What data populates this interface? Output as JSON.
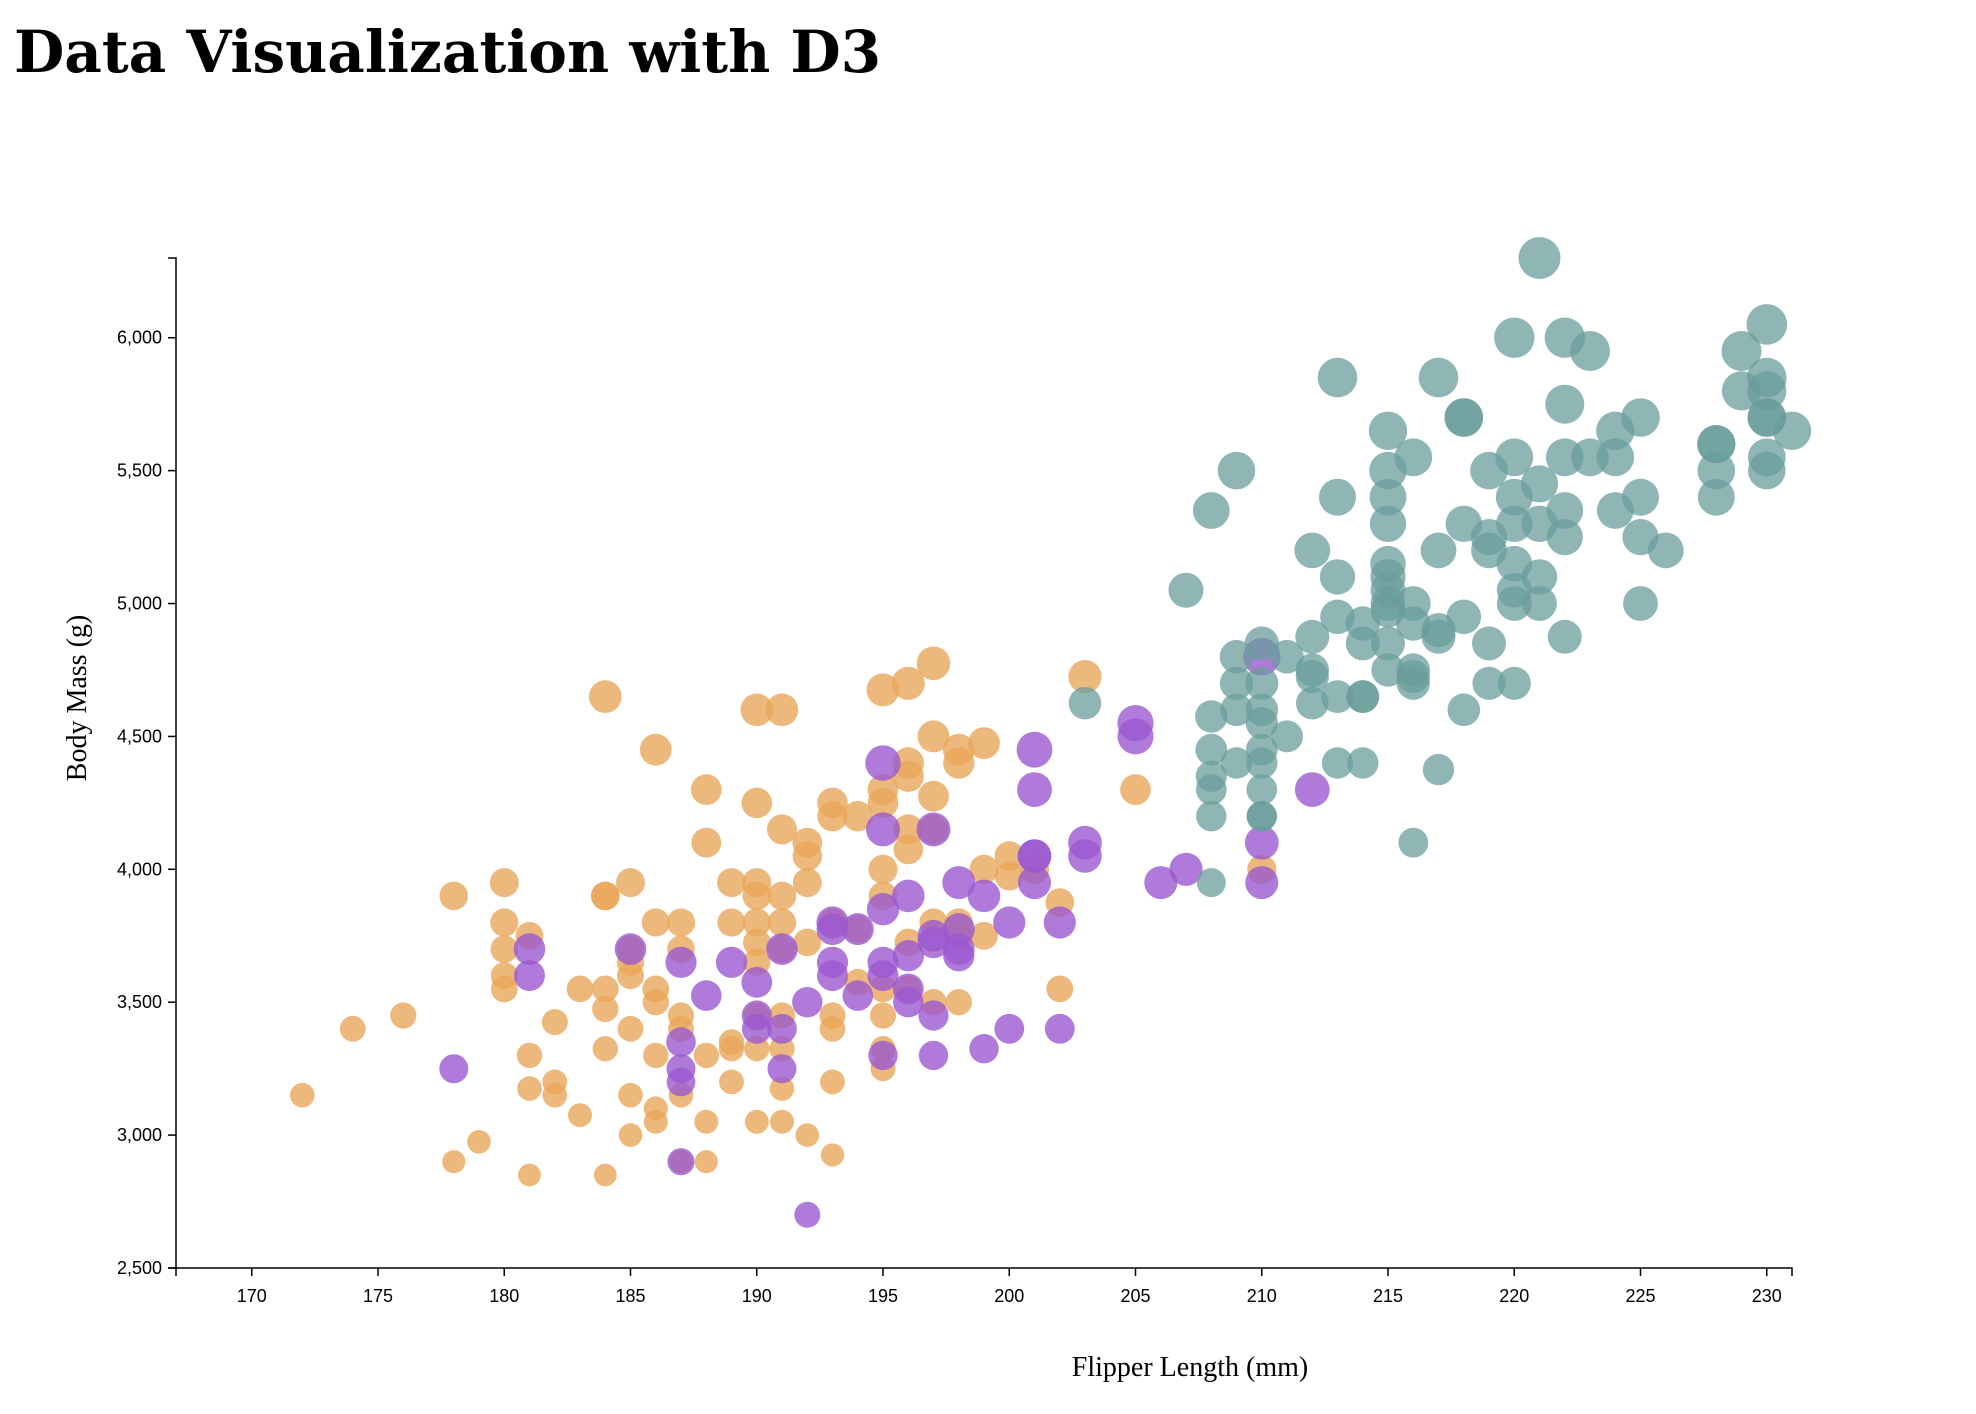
{
  "page": {
    "title": "Data Visualization with D3"
  },
  "chart_data": {
    "type": "scatter",
    "title": "",
    "xlabel": "Flipper Length (mm)",
    "ylabel": "Body Mass (g)",
    "xlim": [
      167,
      231
    ],
    "ylim": [
      2500,
      6300
    ],
    "x_ticks": [
      "170",
      "175",
      "180",
      "185",
      "190",
      "195",
      "200",
      "205",
      "210",
      "215",
      "220",
      "225",
      "230"
    ],
    "y_ticks": [
      "2,500",
      "3,000",
      "3,500",
      "4,000",
      "4,500",
      "5,000",
      "5,500",
      "6,000"
    ],
    "x_tick_values": [
      170,
      175,
      180,
      185,
      190,
      195,
      200,
      205,
      210,
      215,
      220,
      225,
      230
    ],
    "y_tick_values": [
      2500,
      3000,
      3500,
      4000,
      4500,
      5000,
      5500,
      6000
    ],
    "grid": false,
    "series": [
      {
        "color": "#e8a65a",
        "points": [
          [
            172,
            3150
          ],
          [
            174,
            3400
          ],
          [
            176,
            3450
          ],
          [
            178,
            3900
          ],
          [
            178,
            2900
          ],
          [
            179,
            2975
          ],
          [
            180,
            3950
          ],
          [
            180,
            3800
          ],
          [
            180,
            3700
          ],
          [
            180,
            3600
          ],
          [
            180,
            3550
          ],
          [
            181,
            3750
          ],
          [
            181,
            3300
          ],
          [
            181,
            3175
          ],
          [
            181,
            2850
          ],
          [
            182,
            3425
          ],
          [
            182,
            3200
          ],
          [
            182,
            3150
          ],
          [
            183,
            3550
          ],
          [
            183,
            3075
          ],
          [
            184,
            4650
          ],
          [
            184,
            3900
          ],
          [
            184,
            3900
          ],
          [
            184,
            3550
          ],
          [
            184,
            3475
          ],
          [
            184,
            3325
          ],
          [
            184,
            2850
          ],
          [
            185,
            3950
          ],
          [
            185,
            3700
          ],
          [
            185,
            3650
          ],
          [
            185,
            3600
          ],
          [
            185,
            3400
          ],
          [
            185,
            3150
          ],
          [
            185,
            3000
          ],
          [
            186,
            4450
          ],
          [
            186,
            3800
          ],
          [
            186,
            3550
          ],
          [
            186,
            3500
          ],
          [
            186,
            3300
          ],
          [
            186,
            3100
          ],
          [
            186,
            3050
          ],
          [
            187,
            3800
          ],
          [
            187,
            3700
          ],
          [
            187,
            3450
          ],
          [
            187,
            3400
          ],
          [
            187,
            3150
          ],
          [
            187,
            2900
          ],
          [
            188,
            4300
          ],
          [
            188,
            4100
          ],
          [
            188,
            3300
          ],
          [
            188,
            3050
          ],
          [
            188,
            2900
          ],
          [
            189,
            3950
          ],
          [
            189,
            3800
          ],
          [
            189,
            3350
          ],
          [
            189,
            3325
          ],
          [
            189,
            3200
          ],
          [
            190,
            4600
          ],
          [
            190,
            4250
          ],
          [
            190,
            3950
          ],
          [
            190,
            3900
          ],
          [
            190,
            3800
          ],
          [
            190,
            3725
          ],
          [
            190,
            3650
          ],
          [
            190,
            3450
          ],
          [
            190,
            3325
          ],
          [
            190,
            3050
          ],
          [
            191,
            4600
          ],
          [
            191,
            4150
          ],
          [
            191,
            3900
          ],
          [
            191,
            3800
          ],
          [
            191,
            3700
          ],
          [
            191,
            3450
          ],
          [
            191,
            3325
          ],
          [
            191,
            3175
          ],
          [
            191,
            3050
          ],
          [
            192,
            4100
          ],
          [
            192,
            4050
          ],
          [
            192,
            3950
          ],
          [
            192,
            3725
          ],
          [
            192,
            3000
          ],
          [
            193,
            4250
          ],
          [
            193,
            4200
          ],
          [
            193,
            3800
          ],
          [
            193,
            3450
          ],
          [
            193,
            3400
          ],
          [
            193,
            3200
          ],
          [
            193,
            2925
          ],
          [
            194,
            4200
          ],
          [
            194,
            3775
          ],
          [
            194,
            3575
          ],
          [
            195,
            4675
          ],
          [
            195,
            4300
          ],
          [
            195,
            4250
          ],
          [
            195,
            4000
          ],
          [
            195,
            3900
          ],
          [
            195,
            3550
          ],
          [
            195,
            3450
          ],
          [
            195,
            3325
          ],
          [
            195,
            3250
          ],
          [
            196,
            4700
          ],
          [
            196,
            4400
          ],
          [
            196,
            4350
          ],
          [
            196,
            4150
          ],
          [
            196,
            4075
          ],
          [
            196,
            3725
          ],
          [
            196,
            3550
          ],
          [
            197,
            4775
          ],
          [
            197,
            4500
          ],
          [
            197,
            4275
          ],
          [
            197,
            4150
          ],
          [
            197,
            3800
          ],
          [
            197,
            3500
          ],
          [
            198,
            4450
          ],
          [
            198,
            4400
          ],
          [
            198,
            3800
          ],
          [
            198,
            3750
          ],
          [
            198,
            3500
          ],
          [
            199,
            4475
          ],
          [
            199,
            4000
          ],
          [
            199,
            3750
          ],
          [
            200,
            4050
          ],
          [
            200,
            3975
          ],
          [
            201,
            4000
          ],
          [
            202,
            3875
          ],
          [
            202,
            3550
          ],
          [
            203,
            4725
          ],
          [
            205,
            4300
          ],
          [
            210,
            4000
          ]
        ]
      },
      {
        "color": "#9b59d0",
        "points": [
          [
            178,
            3250
          ],
          [
            181,
            3700
          ],
          [
            181,
            3600
          ],
          [
            185,
            3700
          ],
          [
            187,
            3650
          ],
          [
            187,
            3350
          ],
          [
            187,
            3250
          ],
          [
            187,
            3200
          ],
          [
            187,
            2900
          ],
          [
            188,
            3525
          ],
          [
            189,
            3650
          ],
          [
            190,
            3575
          ],
          [
            190,
            3450
          ],
          [
            190,
            3400
          ],
          [
            191,
            3700
          ],
          [
            191,
            3400
          ],
          [
            191,
            3250
          ],
          [
            192,
            3500
          ],
          [
            192,
            2700
          ],
          [
            193,
            3800
          ],
          [
            193,
            3775
          ],
          [
            193,
            3650
          ],
          [
            193,
            3600
          ],
          [
            194,
            3775
          ],
          [
            194,
            3525
          ],
          [
            195,
            4400
          ],
          [
            195,
            4150
          ],
          [
            195,
            3850
          ],
          [
            195,
            3650
          ],
          [
            195,
            3600
          ],
          [
            195,
            3300
          ],
          [
            196,
            3900
          ],
          [
            196,
            3675
          ],
          [
            196,
            3550
          ],
          [
            196,
            3500
          ],
          [
            197,
            4150
          ],
          [
            197,
            3750
          ],
          [
            197,
            3725
          ],
          [
            197,
            3450
          ],
          [
            197,
            3300
          ],
          [
            198,
            3950
          ],
          [
            198,
            3775
          ],
          [
            198,
            3700
          ],
          [
            198,
            3675
          ],
          [
            199,
            3900
          ],
          [
            199,
            3325
          ],
          [
            200,
            3800
          ],
          [
            200,
            3400
          ],
          [
            201,
            4450
          ],
          [
            201,
            4300
          ],
          [
            201,
            4050
          ],
          [
            201,
            4050
          ],
          [
            201,
            3950
          ],
          [
            202,
            3800
          ],
          [
            202,
            3400
          ],
          [
            203,
            4100
          ],
          [
            203,
            4050
          ],
          [
            205,
            4550
          ],
          [
            205,
            4500
          ],
          [
            206,
            3950
          ],
          [
            207,
            4000
          ],
          [
            210,
            4800
          ],
          [
            210,
            4100
          ],
          [
            210,
            3950
          ],
          [
            212,
            4300
          ]
        ]
      },
      {
        "color": "#6a9e9b",
        "points": [
          [
            203,
            4625
          ],
          [
            207,
            5050
          ],
          [
            208,
            5350
          ],
          [
            208,
            4575
          ],
          [
            208,
            4450
          ],
          [
            208,
            4350
          ],
          [
            208,
            4300
          ],
          [
            208,
            4200
          ],
          [
            208,
            3950
          ],
          [
            209,
            5500
          ],
          [
            209,
            4800
          ],
          [
            209,
            4700
          ],
          [
            209,
            4600
          ],
          [
            209,
            4400
          ],
          [
            210,
            4850
          ],
          [
            210,
            4700
          ],
          [
            210,
            4600
          ],
          [
            210,
            4550
          ],
          [
            210,
            4450
          ],
          [
            210,
            4400
          ],
          [
            210,
            4300
          ],
          [
            210,
            4200
          ],
          [
            210,
            4200
          ],
          [
            211,
            4800
          ],
          [
            211,
            4500
          ],
          [
            212,
            5200
          ],
          [
            212,
            4875
          ],
          [
            212,
            4750
          ],
          [
            212,
            4725
          ],
          [
            212,
            4625
          ],
          [
            213,
            5850
          ],
          [
            213,
            5400
          ],
          [
            213,
            5100
          ],
          [
            213,
            4950
          ],
          [
            213,
            4650
          ],
          [
            213,
            4400
          ],
          [
            214,
            4925
          ],
          [
            214,
            4850
          ],
          [
            214,
            4650
          ],
          [
            214,
            4650
          ],
          [
            214,
            4400
          ],
          [
            215,
            5650
          ],
          [
            215,
            5500
          ],
          [
            215,
            5400
          ],
          [
            215,
            5300
          ],
          [
            215,
            5150
          ],
          [
            215,
            5100
          ],
          [
            215,
            5050
          ],
          [
            215,
            5000
          ],
          [
            215,
            4975
          ],
          [
            215,
            4850
          ],
          [
            215,
            4750
          ],
          [
            216,
            5550
          ],
          [
            216,
            5000
          ],
          [
            216,
            4925
          ],
          [
            216,
            4750
          ],
          [
            216,
            4725
          ],
          [
            216,
            4700
          ],
          [
            216,
            4100
          ],
          [
            217,
            5850
          ],
          [
            217,
            5200
          ],
          [
            217,
            4900
          ],
          [
            217,
            4875
          ],
          [
            217,
            4375
          ],
          [
            218,
            5700
          ],
          [
            218,
            5700
          ],
          [
            218,
            5300
          ],
          [
            218,
            4950
          ],
          [
            218,
            4600
          ],
          [
            219,
            5500
          ],
          [
            219,
            5250
          ],
          [
            219,
            5200
          ],
          [
            219,
            4850
          ],
          [
            219,
            4700
          ],
          [
            220,
            6000
          ],
          [
            220,
            5550
          ],
          [
            220,
            5400
          ],
          [
            220,
            5300
          ],
          [
            220,
            5150
          ],
          [
            220,
            5050
          ],
          [
            220,
            5000
          ],
          [
            220,
            4700
          ],
          [
            221,
            6300
          ],
          [
            221,
            5450
          ],
          [
            221,
            5300
          ],
          [
            221,
            5100
          ],
          [
            221,
            5000
          ],
          [
            222,
            6000
          ],
          [
            222,
            5750
          ],
          [
            222,
            5550
          ],
          [
            222,
            5350
          ],
          [
            222,
            5250
          ],
          [
            222,
            4875
          ],
          [
            223,
            5950
          ],
          [
            223,
            5550
          ],
          [
            224,
            5650
          ],
          [
            224,
            5550
          ],
          [
            224,
            5350
          ],
          [
            225,
            5700
          ],
          [
            225,
            5400
          ],
          [
            225,
            5250
          ],
          [
            225,
            5000
          ],
          [
            226,
            5200
          ],
          [
            228,
            5600
          ],
          [
            228,
            5600
          ],
          [
            228,
            5500
          ],
          [
            228,
            5400
          ],
          [
            229,
            5950
          ],
          [
            229,
            5800
          ],
          [
            230,
            6050
          ],
          [
            230,
            5850
          ],
          [
            230,
            5800
          ],
          [
            230,
            5700
          ],
          [
            230,
            5700
          ],
          [
            230,
            5550
          ],
          [
            230,
            5500
          ],
          [
            231,
            5650
          ]
        ]
      }
    ]
  }
}
